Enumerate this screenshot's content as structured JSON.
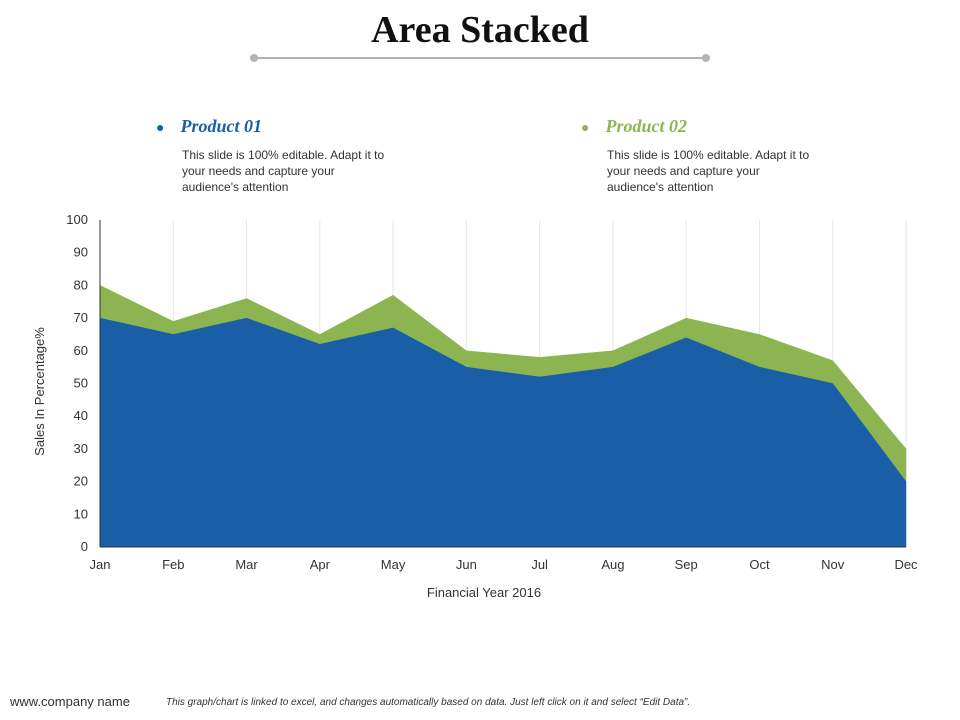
{
  "title": "Area Stacked",
  "colors": {
    "product01": "#1a5ea8",
    "product02": "#8cb552",
    "rule": "#b3b3b3",
    "grid": "#e6e6e6"
  },
  "legend": [
    {
      "name": "Product 01",
      "description": "This slide is 100% editable. Adapt it to your needs and capture your audience's attention"
    },
    {
      "name": "Product 02",
      "description": "This slide is 100% editable. Adapt it to your needs and capture your audience's attention"
    }
  ],
  "chart_data": {
    "type": "area",
    "stacked": true,
    "categories": [
      "Jan",
      "Feb",
      "Mar",
      "Apr",
      "May",
      "Jun",
      "Jul",
      "Aug",
      "Sep",
      "Oct",
      "Nov",
      "Dec"
    ],
    "series": [
      {
        "name": "Product 01",
        "values": [
          70,
          65,
          70,
          62,
          67,
          55,
          52,
          55,
          64,
          55,
          50,
          20
        ]
      },
      {
        "name": "Product 02",
        "values": [
          10,
          4,
          6,
          3,
          10,
          5,
          6,
          5,
          6,
          10,
          7,
          10
        ]
      }
    ],
    "xlabel": "Financial Year 2016",
    "ylabel": "Sales In Percentage%",
    "ylim": [
      0,
      100
    ],
    "yticks": [
      "0",
      "10",
      "20",
      "30",
      "40",
      "50",
      "60",
      "70",
      "80",
      "90",
      "100"
    ],
    "grid": "vertical"
  },
  "footer": {
    "company": "www.company name",
    "note": "This graph/chart is linked to excel, and changes automatically based on data. Just left click on it and select “Edit Data”."
  }
}
